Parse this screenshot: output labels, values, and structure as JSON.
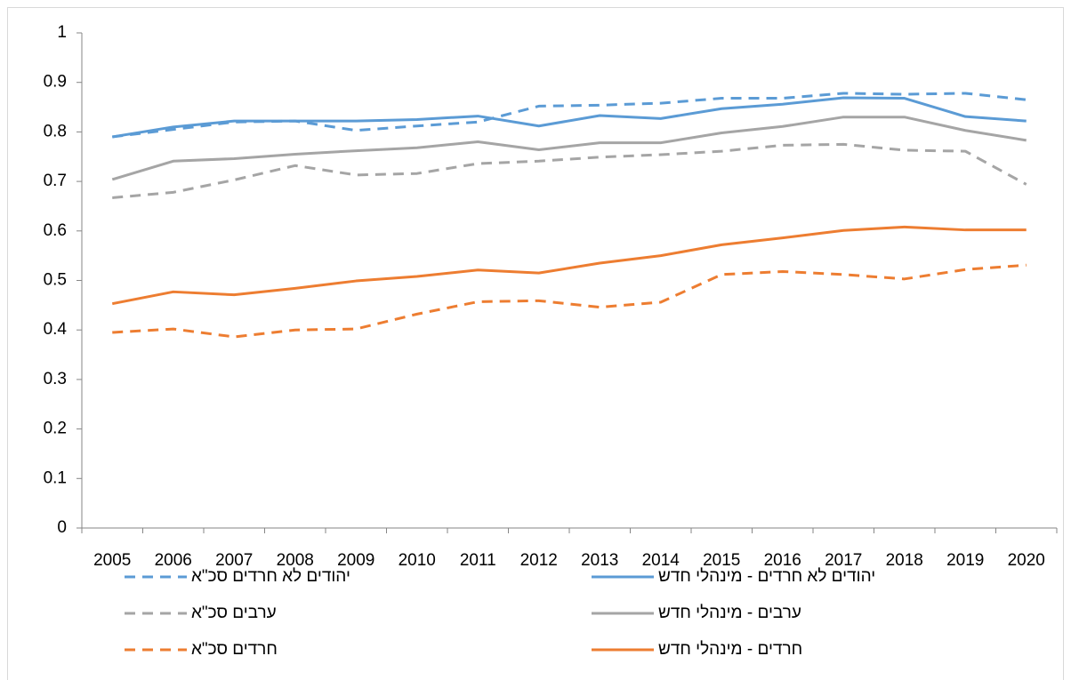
{
  "chart_data": {
    "type": "line",
    "categories": [
      "2005",
      "2006",
      "2007",
      "2008",
      "2009",
      "2010",
      "2011",
      "2012",
      "2013",
      "2014",
      "2015",
      "2016",
      "2017",
      "2018",
      "2019",
      "2020"
    ],
    "ylim": [
      0,
      1
    ],
    "yticks": [
      0,
      0.1,
      0.2,
      0.3,
      0.4,
      0.5,
      0.6,
      0.7,
      0.8,
      0.9,
      1
    ],
    "grid": false,
    "legend": "bottom",
    "series": [
      {
        "name": "יהודים לא חרדים - מינהלי חדש",
        "color": "#5b9bd5",
        "dashed": false,
        "values": [
          0.79,
          0.81,
          0.822,
          0.822,
          0.822,
          0.825,
          0.832,
          0.812,
          0.833,
          0.827,
          0.847,
          0.856,
          0.869,
          0.868,
          0.831,
          0.822
        ]
      },
      {
        "name": "יהודים לא חרדים סכ\"א",
        "color": "#5b9bd5",
        "dashed": true,
        "values": [
          0.79,
          0.805,
          0.82,
          0.822,
          0.803,
          0.812,
          0.82,
          0.852,
          0.854,
          0.858,
          0.868,
          0.868,
          0.878,
          0.876,
          0.878,
          0.865
        ]
      },
      {
        "name": "ערבים - מינהלי חדש",
        "color": "#a5a5a5",
        "dashed": false,
        "values": [
          0.704,
          0.741,
          0.746,
          0.755,
          0.762,
          0.768,
          0.78,
          0.764,
          0.778,
          0.778,
          0.798,
          0.811,
          0.83,
          0.83,
          0.803,
          0.783
        ]
      },
      {
        "name": "ערבים סכ\"א",
        "color": "#a5a5a5",
        "dashed": true,
        "values": [
          0.667,
          0.678,
          0.703,
          0.732,
          0.713,
          0.716,
          0.736,
          0.741,
          0.749,
          0.754,
          0.761,
          0.773,
          0.775,
          0.763,
          0.761,
          0.694
        ]
      },
      {
        "name": "חרדים - מינהלי חדש",
        "color": "#ed7d31",
        "dashed": false,
        "values": [
          0.453,
          0.477,
          0.471,
          0.484,
          0.499,
          0.508,
          0.521,
          0.515,
          0.535,
          0.55,
          0.572,
          0.586,
          0.601,
          0.608,
          0.602,
          0.602
        ]
      },
      {
        "name": "חרדים סכ\"א",
        "color": "#ed7d31",
        "dashed": true,
        "values": [
          0.395,
          0.402,
          0.386,
          0.4,
          0.402,
          0.432,
          0.457,
          0.459,
          0.446,
          0.456,
          0.512,
          0.518,
          0.512,
          0.503,
          0.522,
          0.531
        ]
      }
    ]
  }
}
